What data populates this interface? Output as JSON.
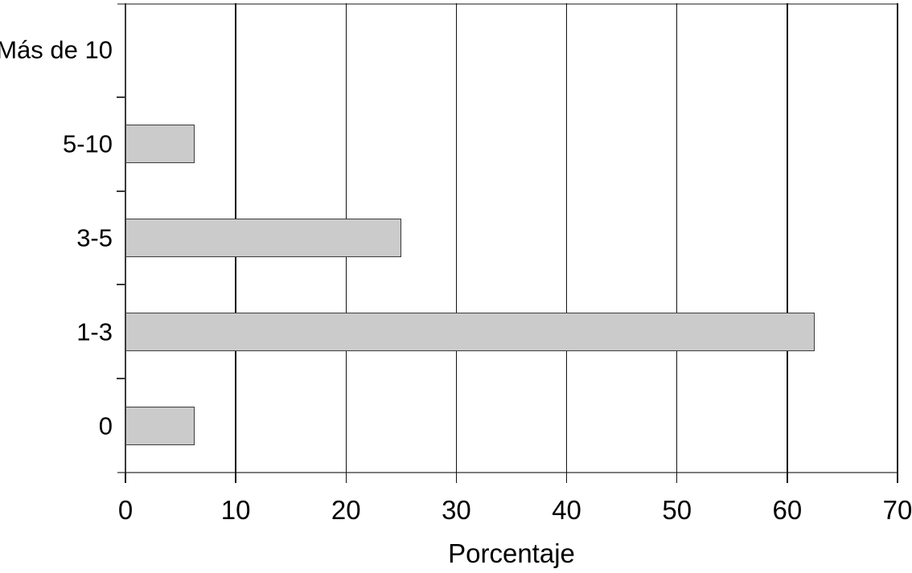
{
  "chart_data": {
    "type": "bar",
    "orientation": "horizontal",
    "title": "",
    "xlabel": "Porcentaje",
    "ylabel": "",
    "categories": [
      "Más de 10",
      "5-10",
      "3-5",
      "1-3",
      "0"
    ],
    "values": [
      0,
      6.25,
      25,
      62.5,
      6.25
    ],
    "xlim": [
      0,
      70
    ],
    "xticks": [
      "0",
      "10",
      "20",
      "30",
      "40",
      "50",
      "60",
      "70"
    ],
    "xtick_values": [
      0,
      10,
      20,
      30,
      40,
      50,
      60,
      70
    ],
    "grid": "vertical gridlines at every x tick, no horizontal gridlines",
    "legend": "none",
    "colors": {
      "bar_fill": "#cbcbcb",
      "bar_border": "#3c3c3c",
      "gridline": "#111111",
      "axis_frame": "#7d7d7d",
      "text": "#000000",
      "background": "#ffffff"
    }
  }
}
